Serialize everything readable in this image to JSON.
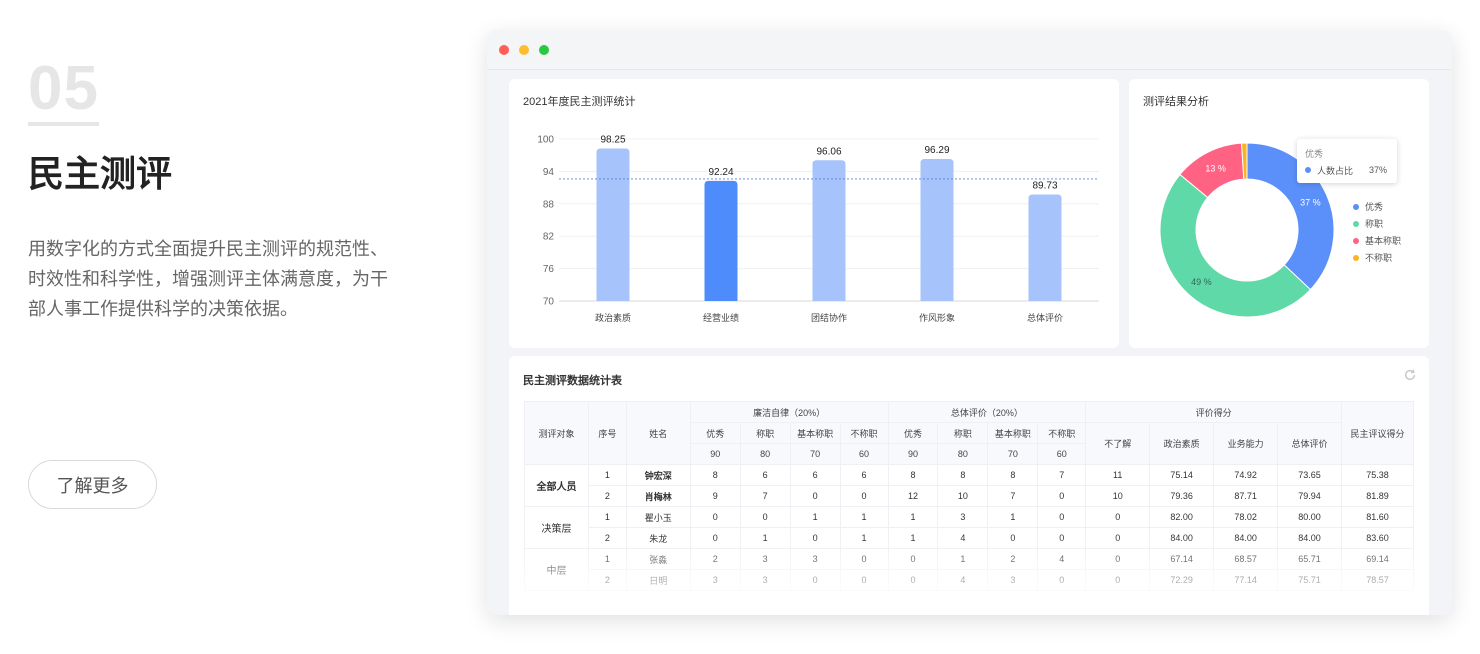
{
  "intro": {
    "number": "05",
    "title": "民主测评",
    "description": "用数字化的方式全面提升民主测评的规范性、时效性和科学性，增强测评主体满意度，为干部人事工作提供科学的决策依据。",
    "button_label": "了解更多"
  },
  "window": {
    "dot_colors": [
      "#ff5f57",
      "#febc2e",
      "#28c840"
    ]
  },
  "bar_chart": {
    "title": "2021年度民主测评统计"
  },
  "pie_chart": {
    "title": "测评结果分析",
    "tooltip": {
      "title": "优秀",
      "label": "人数占比",
      "value": "37%"
    },
    "legend": [
      "优秀",
      "称职",
      "基本称职",
      "不称职"
    ]
  },
  "chart_data": [
    {
      "type": "bar",
      "title": "2021年度民主测评统计",
      "categories": [
        "政治素质",
        "经营业绩",
        "团结协作",
        "作风形象",
        "总体评价"
      ],
      "values": [
        98.25,
        92.24,
        96.06,
        96.29,
        89.73
      ],
      "data_labels": [
        "98.25",
        "92.24",
        "96.06",
        "96.29",
        "89.73"
      ],
      "highlight_index": 1,
      "yticks": [
        "70",
        "76",
        "82",
        "88",
        "94",
        "100"
      ],
      "ylim": [
        70,
        100
      ],
      "reference_line": 92.6,
      "colors": {
        "normal": "#a6c4fb",
        "highlight": "#4f8cfb",
        "reference": "#5b7fd6"
      },
      "grid": true
    },
    {
      "type": "pie",
      "title": "测评结果分析",
      "categories": [
        "优秀",
        "称职",
        "基本称职",
        "不称职"
      ],
      "values": [
        37,
        49,
        13,
        1
      ],
      "slice_labels": [
        "37 %",
        "49 %",
        "13 %",
        ""
      ],
      "colors": [
        "#5b8ff9",
        "#5fd9a8",
        "#ff6283",
        "#fab423"
      ],
      "legend_position": "right"
    }
  ],
  "table": {
    "title": "民主测评数据统计表",
    "headers": {
      "object": "测评对象",
      "seq": "序号",
      "name": "姓名",
      "group1": "廉洁自律（20%）",
      "group2": "总体评价（20%）",
      "group3": "评价得分",
      "final": "民主评议得分",
      "levels": [
        "优秀",
        "称职",
        "基本称职",
        "不称职"
      ],
      "weights": [
        "90",
        "80",
        "70",
        "60"
      ],
      "score_cols": [
        "不了解",
        "政治素质",
        "业务能力",
        "总体评价"
      ]
    },
    "groups": [
      {
        "label": "全部人员",
        "rows": [
          [
            "1",
            "钟宏深",
            "8",
            "6",
            "6",
            "6",
            "8",
            "8",
            "8",
            "7",
            "11",
            "75.14",
            "74.92",
            "73.65",
            "75.38"
          ],
          [
            "2",
            "肖梅林",
            "9",
            "7",
            "0",
            "0",
            "12",
            "10",
            "7",
            "0",
            "10",
            "79.36",
            "87.71",
            "79.94",
            "81.89"
          ]
        ]
      },
      {
        "label": "决策层",
        "rows": [
          [
            "1",
            "瞿小玉",
            "0",
            "0",
            "1",
            "1",
            "1",
            "3",
            "1",
            "0",
            "0",
            "82.00",
            "78.02",
            "80.00",
            "81.60"
          ],
          [
            "2",
            "朱龙",
            "0",
            "1",
            "0",
            "1",
            "1",
            "4",
            "0",
            "0",
            "0",
            "84.00",
            "84.00",
            "84.00",
            "83.60"
          ]
        ]
      },
      {
        "label": "中层",
        "rows": [
          [
            "1",
            "张淼",
            "2",
            "3",
            "3",
            "0",
            "0",
            "1",
            "2",
            "4",
            "0",
            "67.14",
            "68.57",
            "65.71",
            "69.14"
          ],
          [
            "2",
            "日明",
            "3",
            "3",
            "0",
            "0",
            "0",
            "4",
            "3",
            "0",
            "0",
            "72.29",
            "77.14",
            "75.71",
            "78.57"
          ]
        ]
      }
    ]
  }
}
